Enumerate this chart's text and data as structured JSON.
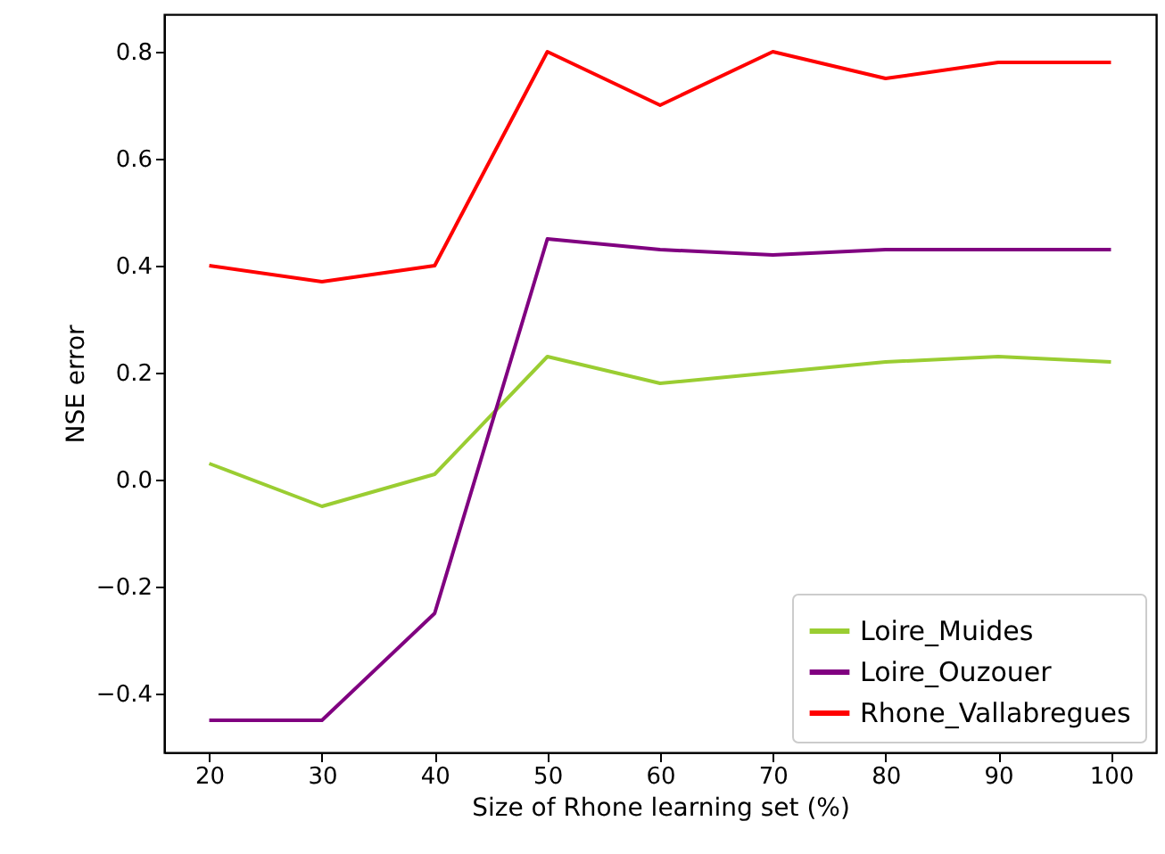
{
  "chart_data": {
    "type": "line",
    "xlabel": "Size of Rhone learning set (%)",
    "ylabel": "NSE error",
    "x": [
      20,
      30,
      40,
      50,
      60,
      70,
      80,
      90,
      100
    ],
    "xlim": [
      16,
      104
    ],
    "xticks": [
      20,
      30,
      40,
      50,
      60,
      70,
      80,
      90,
      100
    ],
    "ylim": [
      -0.51,
      0.87
    ],
    "yticks": [
      {
        "value": -0.4,
        "label": "−0.4"
      },
      {
        "value": -0.2,
        "label": "−0.2"
      },
      {
        "value": 0,
        "label": "0.0"
      },
      {
        "value": 0.2,
        "label": "0.2"
      },
      {
        "value": 0.4,
        "label": "0.4"
      },
      {
        "value": 0.6,
        "label": "0.6"
      },
      {
        "value": 0.8,
        "label": "0.8"
      }
    ],
    "grid": false,
    "legend": "bottom right",
    "marker": "none",
    "line_style": "solid",
    "series": [
      {
        "name": "Loire_Muides",
        "color": "#9acd32",
        "values": [
          0.03,
          -0.05,
          0.01,
          0.23,
          0.18,
          0.2,
          0.22,
          0.23,
          0.22
        ]
      },
      {
        "name": "Loire_Ouzouer",
        "color": "#800080",
        "values": [
          -0.45,
          -0.45,
          -0.25,
          0.45,
          0.43,
          0.42,
          0.43,
          0.43,
          0.43
        ]
      },
      {
        "name": "Rhone_Vallabregues",
        "color": "#ff0000",
        "values": [
          0.4,
          0.37,
          0.4,
          0.8,
          0.7,
          0.8,
          0.75,
          0.78,
          0.78
        ]
      }
    ]
  }
}
